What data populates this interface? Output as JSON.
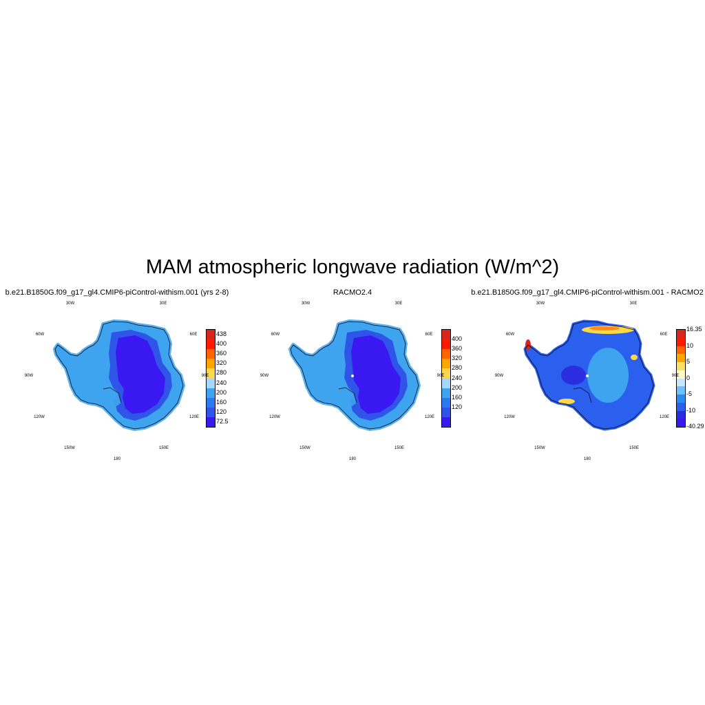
{
  "figure": {
    "title": "MAM atmospheric longwave radiation (W/m^2)",
    "longitude_labels": [
      "30W",
      "30E",
      "60W",
      "60E",
      "90W",
      "90E",
      "120W",
      "120E",
      "150W",
      "150E",
      "180"
    ]
  },
  "panels": [
    {
      "title": "b.e21.B1850G.f09_g17_gl4.CMIP6-piControl-withism.001 (yrs 2-8)",
      "field": "model",
      "colorbar": {
        "labels": [
          "438",
          "400",
          "360",
          "320",
          "280",
          "240",
          "200",
          "160",
          "120",
          "72.5"
        ],
        "colors": [
          "#d7261e",
          "#ff1a00",
          "#ff6600",
          "#ffa500",
          "#ffd84a",
          "#a6d8ff",
          "#3fa4f0",
          "#2b7af0",
          "#2f55e8",
          "#3a18f2"
        ]
      }
    },
    {
      "title": "RACMO2.4",
      "field": "reference",
      "colorbar": {
        "labels": [
          "400",
          "360",
          "320",
          "280",
          "240",
          "200",
          "160",
          "120"
        ],
        "colors": [
          "#d7261e",
          "#ff1a00",
          "#ff6600",
          "#ffa500",
          "#ffd84a",
          "#a6d8ff",
          "#3fa4f0",
          "#2b7af0",
          "#2f55e8",
          "#3a18f2"
        ]
      }
    },
    {
      "title": "b.e21.B1850G.f09_g17_gl4.CMIP6-piControl-withism.001 - RACMO2",
      "field": "difference",
      "colorbar": {
        "labels": [
          "16.35",
          "10",
          "5",
          "0",
          "-5",
          "-10",
          "-40.29"
        ],
        "colors": [
          "#d7261e",
          "#ff1a00",
          "#ff6600",
          "#ffa500",
          "#ffe066",
          "#fffbc8",
          "#c8e8ff",
          "#6cc0ff",
          "#2b8cf0",
          "#2b60ee",
          "#2b2ee0",
          "#3a18f2"
        ]
      }
    }
  ],
  "map_data": {
    "projection": "south polar stereographic",
    "region": "Antarctica",
    "colors": {
      "interior": "#3a18f2",
      "plateau_ring": "#2f55e8",
      "coast": "#3fa4f0",
      "coast_outer": "#5ab2f2",
      "diff_base": "#2b60ee",
      "diff_pos": "#ffd84a",
      "diff_hot": "#d7261e"
    }
  }
}
